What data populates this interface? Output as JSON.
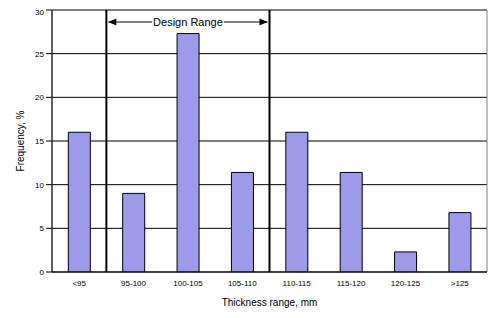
{
  "chart_data": {
    "type": "bar",
    "categories": [
      "<95",
      "95-100",
      "100-105",
      "105-110",
      "110-115",
      "115-120",
      "120-125",
      ">125"
    ],
    "values": [
      16,
      9,
      27.3,
      11.4,
      16,
      11.4,
      2.3,
      6.8
    ],
    "color": "#9b9bea",
    "ylim": [
      0,
      30
    ],
    "yticks": [
      0,
      5,
      10,
      15,
      20,
      25,
      30
    ],
    "grid": true,
    "x_label": "Thickness range, mm",
    "y_label": "Frequency, %",
    "annotations": [
      {
        "text": "Design Range",
        "from_category": "95-100",
        "to_category": "105-110"
      }
    ]
  }
}
